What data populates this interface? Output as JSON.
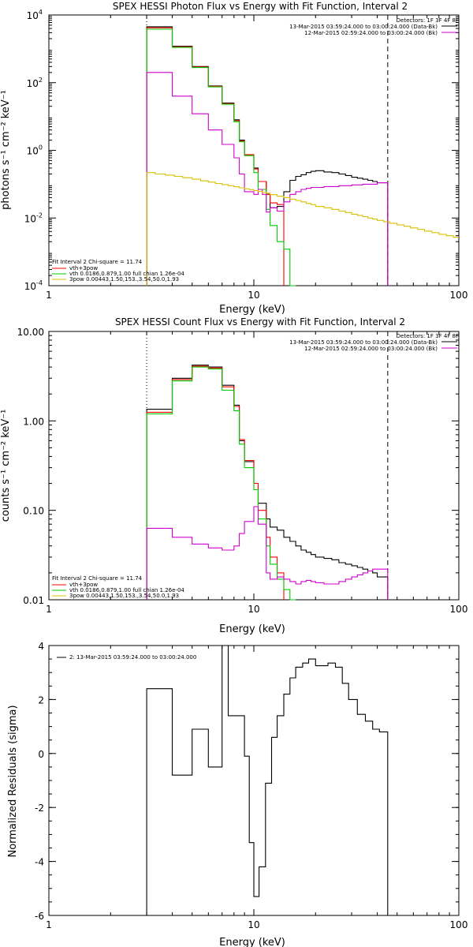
{
  "chart_data": [
    {
      "id": "photon",
      "type": "line",
      "title": "SPEX HESSI Photon Flux vs Energy with Fit Function, Interval 2",
      "xlabel": "Energy (keV)",
      "ylabel": "photons s⁻¹ cm⁻² keV⁻¹",
      "xscale": "log",
      "yscale": "log",
      "xlim": [
        1,
        100
      ],
      "ylim": [
        0.0001,
        10000
      ],
      "xticks": [
        {
          "v": 1,
          "label": "1"
        },
        {
          "v": 10,
          "label": "10"
        },
        {
          "v": 100,
          "label": "100"
        }
      ],
      "yticks": [
        {
          "v": 0.0001,
          "base": "10",
          "exp": "-4"
        },
        {
          "v": 0.01,
          "base": "10",
          "exp": "-2"
        },
        {
          "v": 1,
          "base": "10",
          "exp": "0"
        },
        {
          "v": 100,
          "base": "10",
          "exp": "2"
        },
        {
          "v": 10000,
          "base": "10",
          "exp": "4"
        }
      ],
      "vlines": [
        {
          "x": 3,
          "style": "dotted"
        },
        {
          "x": 45,
          "style": "dashed"
        }
      ],
      "legend_top": {
        "position": "top-right",
        "lines": [
          "Detectors: 1F 3F 4F 8F",
          "13-Mar-2015 03:59:24.000 to 03:00:24.000 (Data-Bk)",
          "12-Mar-2015 02:59:24.000 to 03:00:24.000 (Bk)"
        ],
        "colors": [
          "",
          "#000000",
          "#d000d0"
        ]
      },
      "legend_bottom": {
        "position": "bottom-left",
        "lines": [
          "Fit Interval 2   Chi-square = 11.74",
          "vth+3pow",
          "vth 0.0186,0.879,1.00  full chian 1.26e-04",
          "3pow 0.00443,1.50,153.,3.54,50.0,1.93"
        ],
        "colors": [
          "",
          "#ff0000",
          "#00cc00",
          "#d8c000"
        ]
      },
      "series": [
        {
          "color": "#000000",
          "edges": [
            3,
            3.5,
            4,
            4.5,
            5,
            5.5,
            6,
            6.5,
            7,
            7.5,
            8,
            8.5,
            9,
            9.5,
            10,
            10.5,
            11,
            11.5,
            12,
            13,
            14,
            15,
            16,
            17,
            18,
            19,
            20,
            22,
            24,
            26,
            28,
            30,
            32,
            34,
            36,
            38,
            40,
            45
          ],
          "values": [
            4500,
            4500,
            1200,
            1200,
            300,
            300,
            80,
            80,
            25,
            25,
            8,
            2,
            0.7,
            0.7,
            0.3,
            0.12,
            0.12,
            0.05,
            0.02,
            0.022,
            0.06,
            0.13,
            0.17,
            0.19,
            0.22,
            0.24,
            0.25,
            0.23,
            0.22,
            0.2,
            0.18,
            0.16,
            0.15,
            0.14,
            0.13,
            0.12,
            0.11
          ]
        },
        {
          "color": "#ff0000",
          "edges": [
            3,
            3.5,
            4,
            4.5,
            5,
            5.5,
            6,
            6.5,
            7,
            7.5,
            8,
            8.5,
            9,
            9.5,
            10,
            10.5,
            11,
            11.5,
            12,
            13,
            14
          ],
          "values": [
            4200,
            4200,
            1150,
            1150,
            290,
            290,
            78,
            78,
            24,
            24,
            7.5,
            1.9,
            0.75,
            0.75,
            0.28,
            0.12,
            0.12,
            0.05,
            0.028,
            0.025
          ]
        },
        {
          "color": "#00cc00",
          "edges": [
            3,
            3.5,
            4,
            4.5,
            5,
            5.5,
            6,
            6.5,
            7,
            7.5,
            8,
            8.5,
            9,
            9.5,
            10,
            10.5,
            11,
            11.5,
            12,
            13,
            14,
            15,
            16
          ],
          "values": [
            3800,
            3800,
            1100,
            1100,
            280,
            280,
            75,
            75,
            23,
            23,
            7,
            1.8,
            0.7,
            0.7,
            0.22,
            0.07,
            0.07,
            0.018,
            0.006,
            0.002,
            0.0012,
            0.0001
          ]
        },
        {
          "color": "#d000d0",
          "edges": [
            3,
            3.5,
            4,
            4.5,
            5,
            5.5,
            6,
            6.5,
            7,
            7.5,
            8,
            8.5,
            9,
            9.5,
            10,
            10.5,
            11,
            11.5,
            12,
            13,
            14,
            15,
            16,
            17,
            18,
            19,
            20,
            22,
            24,
            26,
            28,
            30,
            32,
            34,
            36,
            38,
            40,
            45
          ],
          "values": [
            200,
            200,
            40,
            40,
            12,
            12,
            4,
            4,
            1.5,
            1.5,
            0.6,
            0.2,
            0.06,
            0.06,
            0.05,
            0.07,
            0.05,
            0.015,
            0.02,
            0.016,
            0.03,
            0.05,
            0.06,
            0.07,
            0.075,
            0.08,
            0.08,
            0.085,
            0.085,
            0.09,
            0.09,
            0.095,
            0.095,
            0.1,
            0.1,
            0.1,
            0.11
          ]
        },
        {
          "color": "#d8c000",
          "edges": [
            3,
            3.3,
            3.7,
            4.1,
            4.5,
            5,
            5.5,
            6,
            6.5,
            7,
            7.5,
            8,
            8.5,
            9,
            9.5,
            10,
            10.5,
            11,
            11.5,
            12,
            13,
            14,
            15,
            16,
            17,
            18,
            19,
            20,
            22,
            24,
            26,
            28,
            30,
            32,
            34,
            36,
            38,
            40,
            43,
            46,
            50,
            54,
            58,
            63,
            68,
            74,
            80,
            87,
            94,
            100
          ],
          "values": [
            0.22,
            0.2,
            0.185,
            0.17,
            0.155,
            0.14,
            0.125,
            0.115,
            0.105,
            0.097,
            0.09,
            0.084,
            0.078,
            0.073,
            0.069,
            0.065,
            0.061,
            0.057,
            0.054,
            0.049,
            0.044,
            0.04,
            0.036,
            0.033,
            0.03,
            0.027,
            0.025,
            0.022,
            0.02,
            0.018,
            0.016,
            0.0145,
            0.013,
            0.012,
            0.011,
            0.01,
            0.0093,
            0.0085,
            0.0077,
            0.007,
            0.0063,
            0.0057,
            0.0051,
            0.0046,
            0.0041,
            0.0037,
            0.0033,
            0.003,
            0.0027
          ]
        }
      ]
    },
    {
      "id": "count",
      "type": "line",
      "title": "SPEX HESSI Count Flux vs Energy with Fit Function, Interval 2",
      "xlabel": "Energy (keV)",
      "ylabel": "counts s⁻¹ cm⁻² keV⁻¹",
      "xscale": "log",
      "yscale": "log",
      "xlim": [
        1,
        100
      ],
      "ylim": [
        0.01,
        10
      ],
      "xticks": [
        {
          "v": 1,
          "label": "1"
        },
        {
          "v": 10,
          "label": "10"
        },
        {
          "v": 100,
          "label": "100"
        }
      ],
      "yticks": [
        {
          "v": 0.01,
          "label": "0.01"
        },
        {
          "v": 0.1,
          "label": "0.10"
        },
        {
          "v": 1,
          "label": "1.00"
        },
        {
          "v": 10,
          "label": "10.00"
        }
      ],
      "vlines": [
        {
          "x": 3,
          "style": "dotted"
        },
        {
          "x": 45,
          "style": "dashed"
        }
      ],
      "legend_top": {
        "position": "top-right",
        "lines": [
          "Detectors: 1F 3F 4F 8F",
          "13-Mar-2015 03:59:24.000 to 03:00:24.000 (Data-Bk)",
          "12-Mar-2015 02:59:24.000 to 03:00:24.000 (Bk)"
        ],
        "colors": [
          "",
          "#000000",
          "#d000d0"
        ]
      },
      "legend_bottom": {
        "position": "bottom-left",
        "lines": [
          "Fit Interval 2   Chi-square = 11.74",
          "vth+3pow",
          "vth 0.0186,0.879,1.00  full chian 1.26e-04",
          "3pow 0.00443,1.50,153.,3.54,50.0,1.93"
        ],
        "colors": [
          "",
          "#ff0000",
          "#00cc00",
          "#d8c000"
        ]
      },
      "series": [
        {
          "color": "#000000",
          "edges": [
            3,
            3.5,
            4,
            4.5,
            5,
            5.5,
            6,
            6.5,
            7,
            7.5,
            8,
            8.5,
            9,
            9.5,
            10,
            10.5,
            11,
            11.5,
            12,
            13,
            14,
            15,
            16,
            17,
            18,
            19,
            20,
            22,
            24,
            26,
            28,
            30,
            32,
            34,
            36,
            38,
            40,
            45
          ],
          "values": [
            1.35,
            1.35,
            3.0,
            3.0,
            4.2,
            4.2,
            4.0,
            4.0,
            2.5,
            2.5,
            1.5,
            0.6,
            0.35,
            0.35,
            0.2,
            0.12,
            0.12,
            0.08,
            0.065,
            0.06,
            0.05,
            0.045,
            0.04,
            0.036,
            0.034,
            0.032,
            0.03,
            0.029,
            0.028,
            0.026,
            0.025,
            0.024,
            0.023,
            0.022,
            0.021,
            0.02,
            0.018
          ]
        },
        {
          "color": "#ff0000",
          "edges": [
            3,
            3.5,
            4,
            4.5,
            5,
            5.5,
            6,
            6.5,
            7,
            7.5,
            8,
            8.5,
            9,
            9.5,
            10,
            10.5,
            11,
            11.5,
            12,
            13,
            14
          ],
          "values": [
            1.25,
            1.25,
            2.9,
            2.9,
            4.1,
            4.1,
            3.9,
            3.9,
            2.4,
            2.4,
            1.45,
            0.62,
            0.36,
            0.36,
            0.2,
            0.1,
            0.1,
            0.05,
            0.03,
            0.02
          ]
        },
        {
          "color": "#00cc00",
          "edges": [
            3,
            3.5,
            4,
            4.5,
            5,
            5.5,
            6,
            6.5,
            7,
            7.5,
            8,
            8.5,
            9,
            9.5,
            10,
            10.5,
            11,
            11.5,
            12,
            13,
            14,
            15,
            16
          ],
          "values": [
            1.2,
            1.2,
            2.8,
            2.8,
            4.0,
            4.0,
            3.8,
            3.8,
            2.2,
            2.2,
            1.3,
            0.55,
            0.3,
            0.3,
            0.17,
            0.08,
            0.08,
            0.04,
            0.025,
            0.017,
            0.013,
            0.01
          ]
        },
        {
          "color": "#d000d0",
          "edges": [
            3,
            3.5,
            4,
            4.5,
            5,
            5.5,
            6,
            6.5,
            7,
            7.5,
            8,
            8.5,
            9,
            9.5,
            10,
            10.5,
            11,
            11.5,
            12,
            13,
            14,
            15,
            16,
            17,
            18,
            19,
            20,
            22,
            24,
            26,
            28,
            30,
            32,
            34,
            36,
            38,
            40,
            45
          ],
          "values": [
            0.063,
            0.063,
            0.05,
            0.05,
            0.042,
            0.042,
            0.038,
            0.038,
            0.036,
            0.036,
            0.04,
            0.055,
            0.075,
            0.075,
            0.11,
            0.07,
            0.07,
            0.02,
            0.017,
            0.018,
            0.017,
            0.016,
            0.015,
            0.016,
            0.0165,
            0.016,
            0.0155,
            0.015,
            0.015,
            0.016,
            0.017,
            0.018,
            0.019,
            0.02,
            0.021,
            0.022,
            0.022
          ]
        }
      ]
    },
    {
      "id": "resid",
      "type": "line",
      "title": "",
      "xlabel": "Energy (keV)",
      "ylabel": "Normalized Residuals (sigma)",
      "xscale": "log",
      "yscale": "linear",
      "xlim": [
        1,
        100
      ],
      "ylim": [
        -6,
        4
      ],
      "xticks": [
        {
          "v": 1,
          "label": "1"
        },
        {
          "v": 10,
          "label": "10"
        },
        {
          "v": 100,
          "label": "100"
        }
      ],
      "yticks": [
        {
          "v": -6,
          "label": "-6"
        },
        {
          "v": -4,
          "label": "-4"
        },
        {
          "v": -2,
          "label": "-2"
        },
        {
          "v": 0,
          "label": "0"
        },
        {
          "v": 2,
          "label": "2"
        },
        {
          "v": 4,
          "label": "4"
        }
      ],
      "vlines": [],
      "legend_top": {
        "position": "top-left",
        "lines": [
          "2: 13-Mar-2015 03:59:24.000 to 03:00:24.000"
        ],
        "colors": [
          "#000000"
        ]
      },
      "legend_bottom": null,
      "series": [
        {
          "color": "#000000",
          "edges": [
            3,
            4,
            5,
            6,
            7,
            7.5,
            9.0,
            9.5,
            10,
            10.6,
            11.4,
            12.2,
            13.0,
            14.0,
            15.0,
            16.0,
            17.3,
            18.5,
            20,
            23,
            25,
            27,
            29,
            32,
            35,
            38,
            41,
            45
          ],
          "values": [
            2.4,
            -0.8,
            0.9,
            -0.5,
            4.1,
            1.4,
            -0.1,
            -3.3,
            -5.3,
            -4.2,
            -1.1,
            0.6,
            1.4,
            2.2,
            2.8,
            3.2,
            3.35,
            3.5,
            3.25,
            3.35,
            3.2,
            2.6,
            2.0,
            1.45,
            1.2,
            0.9,
            0.8
          ]
        }
      ]
    }
  ]
}
